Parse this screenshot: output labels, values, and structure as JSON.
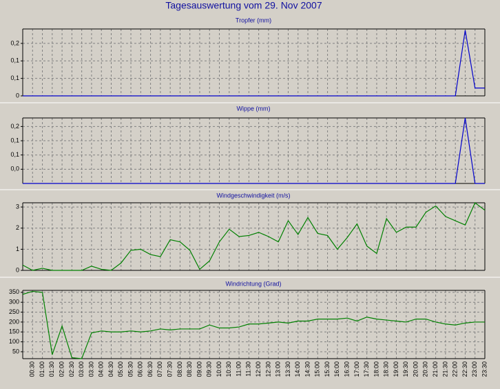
{
  "title": "Tagesauswertung vom 29. Nov 2007",
  "chart_data": [
    {
      "type": "line",
      "title": "Tropfer (mm)",
      "color": "#0000cc",
      "grid": true,
      "ylim": [
        0,
        0.255
      ],
      "yticks": [
        0,
        {
          "value": 0.0667,
          "label": "0,1"
        },
        {
          "value": 0.1333,
          "label": "0,1"
        },
        {
          "value": 0.2,
          "label": "0,2"
        }
      ],
      "values": [
        0,
        0,
        0,
        0,
        0,
        0,
        0,
        0,
        0,
        0,
        0,
        0,
        0,
        0,
        0,
        0,
        0,
        0,
        0,
        0,
        0,
        0,
        0,
        0,
        0,
        0,
        0,
        0,
        0,
        0,
        0,
        0,
        0,
        0,
        0,
        0,
        0,
        0,
        0,
        0,
        0,
        0,
        0,
        0,
        0,
        0.25,
        0.03,
        0.03
      ]
    },
    {
      "type": "line",
      "title": "Wippe (mm)",
      "color": "#0000cc",
      "grid": true,
      "ylim": [
        0,
        0.23
      ],
      "yticks": [
        {
          "value": 0.05,
          "label": "0,0"
        },
        {
          "value": 0.1,
          "label": "0,1"
        },
        {
          "value": 0.15,
          "label": "0,1"
        },
        {
          "value": 0.2,
          "label": "0,2"
        }
      ],
      "values": [
        0,
        0,
        0,
        0,
        0,
        0,
        0,
        0,
        0,
        0,
        0,
        0,
        0,
        0,
        0,
        0,
        0,
        0,
        0,
        0,
        0,
        0,
        0,
        0,
        0,
        0,
        0,
        0,
        0,
        0,
        0,
        0,
        0,
        0,
        0,
        0,
        0,
        0,
        0,
        0,
        0,
        0,
        0,
        0,
        0,
        0.23,
        0,
        0
      ]
    },
    {
      "type": "line",
      "title": "Windgeschwindigkeit (m/s)",
      "color": "#008000",
      "grid": true,
      "ylim": [
        0,
        3.2
      ],
      "yticks": [
        0,
        1,
        2,
        3
      ],
      "values": [
        0.25,
        0,
        0.1,
        0,
        0,
        0,
        0,
        0.2,
        0.05,
        0,
        0.35,
        0.95,
        1.0,
        0.75,
        0.65,
        1.45,
        1.35,
        0.95,
        0.05,
        0.45,
        1.35,
        1.95,
        1.6,
        1.65,
        1.8,
        1.6,
        1.35,
        2.35,
        1.7,
        2.5,
        1.75,
        1.65,
        1.0,
        1.55,
        2.2,
        1.15,
        0.8,
        2.45,
        1.8,
        2.05,
        2.05,
        2.75,
        3.05,
        2.55,
        2.35,
        2.15,
        3.2,
        2.85
      ]
    },
    {
      "type": "line",
      "title": "Windrichtung (Grad)",
      "color": "#008000",
      "grid": true,
      "ylim": [
        15,
        360
      ],
      "yticks": [
        50,
        100,
        150,
        200,
        250,
        300,
        350
      ],
      "categories": [
        null,
        "00:30",
        "01:00",
        "01:30",
        "02:00",
        "02:30",
        "03:00",
        "03:30",
        "04:00",
        "04:30",
        "05:00",
        "05:30",
        "06:00",
        "06:30",
        "07:00",
        "07:30",
        "08:00",
        "08:30",
        "09:00",
        "09:30",
        "10:00",
        "10:30",
        "11:00",
        "11:30",
        "12:00",
        "12:30",
        "13:00",
        "13:30",
        "14:00",
        "14:30",
        "15:00",
        "15:30",
        "16:00",
        "16:30",
        "17:00",
        "17:30",
        "18:00",
        "18:30",
        "19:00",
        "19:30",
        "20:00",
        "20:30",
        "21:00",
        "21:30",
        "22:00",
        "22:30",
        "23:00",
        "23:30"
      ],
      "values": [
        340,
        355,
        350,
        35,
        180,
        20,
        15,
        145,
        155,
        150,
        150,
        155,
        150,
        155,
        165,
        160,
        165,
        165,
        165,
        185,
        170,
        170,
        175,
        190,
        190,
        195,
        200,
        195,
        205,
        205,
        215,
        215,
        215,
        220,
        205,
        225,
        215,
        210,
        205,
        200,
        215,
        215,
        200,
        190,
        185,
        195,
        200,
        200
      ]
    }
  ]
}
